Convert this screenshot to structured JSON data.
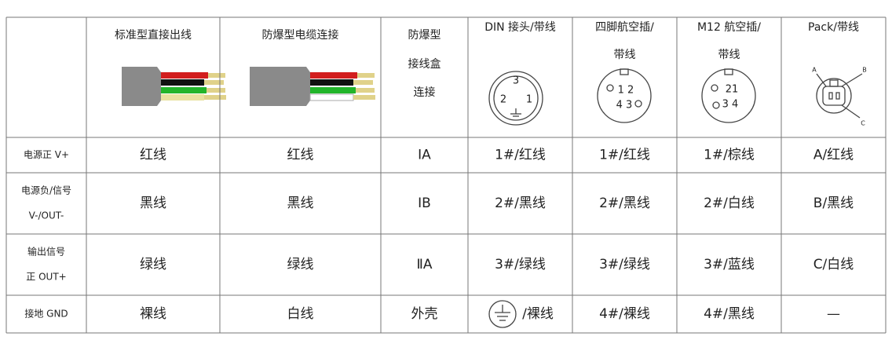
{
  "table": {
    "header": [
      [
        "标准型直接出线"
      ],
      [
        "防爆型电缆连接"
      ],
      [
        "防爆型",
        "接线盒",
        "连接"
      ],
      [
        "DIN 接头/带线"
      ],
      [
        "四脚航空插/",
        "带线"
      ],
      [
        "M12 航空插/",
        "带线"
      ],
      [
        "Pack/带线"
      ]
    ],
    "rows": [
      [
        [
          "电源正 V+"
        ],
        [
          "红线"
        ],
        [
          "红线"
        ],
        [
          "ⅠA"
        ],
        [
          "1#/红线"
        ],
        [
          "1#/红线"
        ],
        [
          "1#/棕线"
        ],
        [
          "A/红线"
        ]
      ],
      [
        [
          "电源负/信号",
          "V-/OUT-"
        ],
        [
          "黑线"
        ],
        [
          "黑线"
        ],
        [
          "ⅠB"
        ],
        [
          "2#/黑线"
        ],
        [
          "2#/黑线"
        ],
        [
          "2#/白线"
        ],
        [
          "B/黑线"
        ]
      ],
      [
        [
          "输出信号",
          "正 OUT+"
        ],
        [
          "绿线"
        ],
        [
          "绿线"
        ],
        [
          "ⅡA"
        ],
        [
          "3#/绿线"
        ],
        [
          "3#/绿线"
        ],
        [
          "3#/蓝线"
        ],
        [
          "C/白线"
        ]
      ],
      [
        [
          "接地 GND"
        ],
        [
          "裸线"
        ],
        [
          "白线"
        ],
        [
          "外壳"
        ],
        [
          "/裸线"
        ],
        [
          "4#/裸线"
        ],
        [
          "4#/黑线"
        ],
        [
          "—"
        ]
      ]
    ]
  },
  "icons": {
    "din": [
      "3",
      "2",
      "1"
    ],
    "four_pin": [
      "1 2",
      "4 3"
    ],
    "m12": [
      "21",
      "3 4"
    ],
    "pack": [
      "A",
      "B",
      "C"
    ]
  }
}
